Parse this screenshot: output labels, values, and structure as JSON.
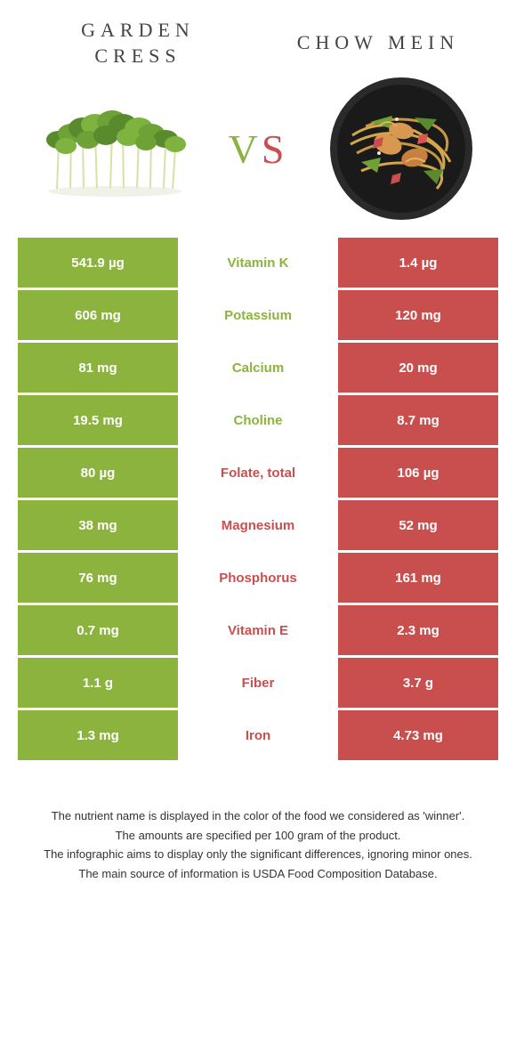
{
  "header": {
    "left_title_line1": "GARDEN",
    "left_title_line2": "CRESS",
    "right_title": "CHOW MEIN",
    "vs_v": "V",
    "vs_s": "S"
  },
  "colors": {
    "green": "#8cb33e",
    "red": "#c94f4f",
    "white": "#ffffff",
    "text": "#333333"
  },
  "rows": [
    {
      "left": "541.9 µg",
      "nutrient": "Vitamin K",
      "right": "1.4 µg",
      "winner": "left"
    },
    {
      "left": "606 mg",
      "nutrient": "Potassium",
      "right": "120 mg",
      "winner": "left"
    },
    {
      "left": "81 mg",
      "nutrient": "Calcium",
      "right": "20 mg",
      "winner": "left"
    },
    {
      "left": "19.5 mg",
      "nutrient": "Choline",
      "right": "8.7 mg",
      "winner": "left"
    },
    {
      "left": "80 µg",
      "nutrient": "Folate, total",
      "right": "106 µg",
      "winner": "right"
    },
    {
      "left": "38 mg",
      "nutrient": "Magnesium",
      "right": "52 mg",
      "winner": "right"
    },
    {
      "left": "76 mg",
      "nutrient": "Phosphorus",
      "right": "161 mg",
      "winner": "right"
    },
    {
      "left": "0.7 mg",
      "nutrient": "Vitamin E",
      "right": "2.3 mg",
      "winner": "right"
    },
    {
      "left": "1.1 g",
      "nutrient": "Fiber",
      "right": "3.7 g",
      "winner": "right"
    },
    {
      "left": "1.3 mg",
      "nutrient": "Iron",
      "right": "4.73 mg",
      "winner": "right"
    }
  ],
  "footer": {
    "line1": "The nutrient name is displayed in the color of the food we considered as 'winner'.",
    "line2": "The amounts are specified per 100 gram of the product.",
    "line3": "The infographic aims to display only the significant differences, ignoring minor ones.",
    "line4": "The main source of information is USDA Food Composition Database."
  }
}
